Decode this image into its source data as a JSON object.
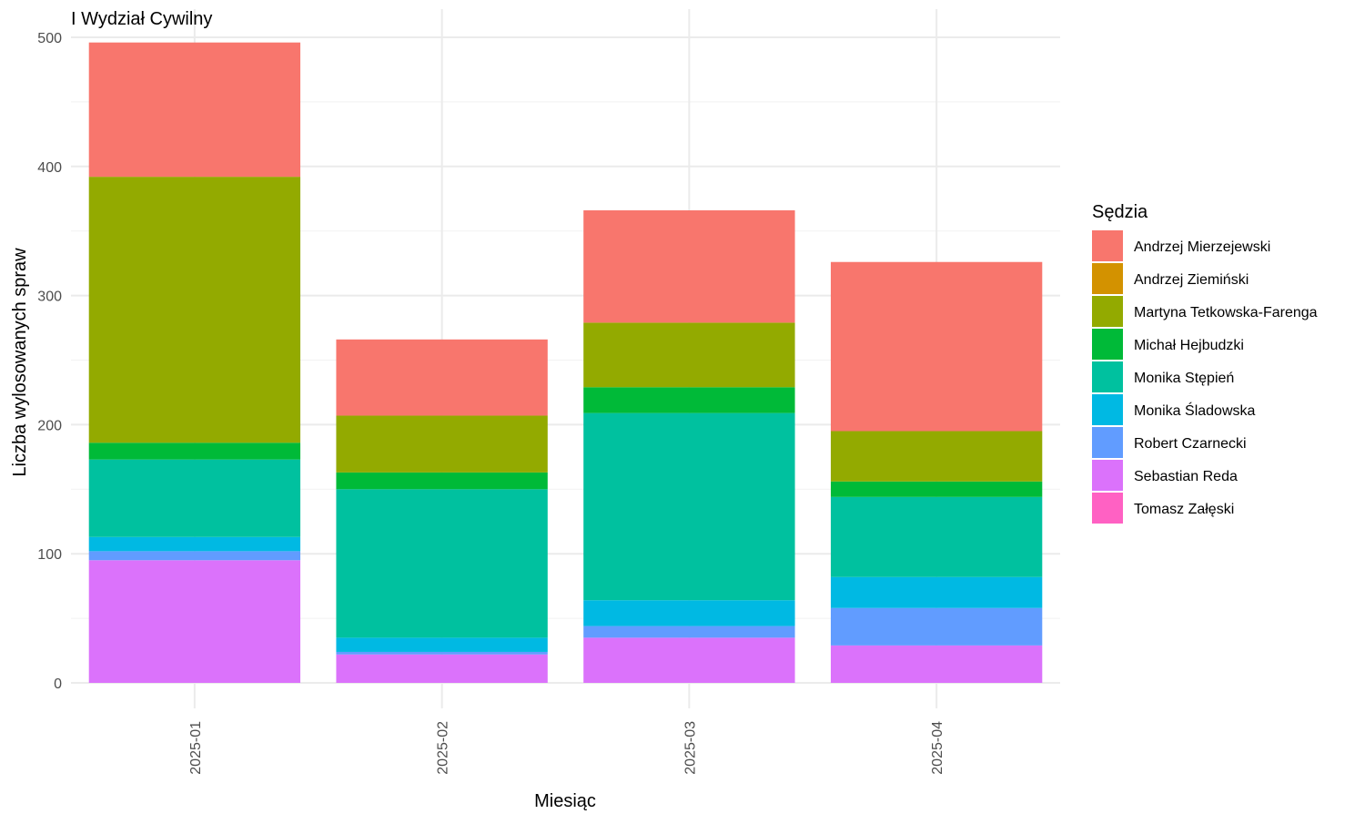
{
  "chart_data": {
    "type": "bar",
    "stacked": true,
    "title": "I Wydział Cywilny",
    "xlabel": "Miesiąc",
    "ylabel": "Liczba wylosowanych spraw",
    "ylim": [
      0,
      520
    ],
    "yticks": [
      0,
      100,
      200,
      300,
      400,
      500
    ],
    "grid": true,
    "legend_title": "Sędzia",
    "legend_position": "right",
    "categories": [
      "2025-01",
      "2025-02",
      "2025-03",
      "2025-04"
    ],
    "series": [
      {
        "name": "Andrzej Mierzejewski",
        "color": "#F8766D",
        "values": [
          104,
          59,
          87,
          131
        ]
      },
      {
        "name": "Andrzej Ziemiński",
        "color": "#D39200",
        "values": [
          0,
          0,
          0,
          0
        ]
      },
      {
        "name": "Martyna Tetkowska-Farenga",
        "color": "#93AA00",
        "values": [
          206,
          44,
          50,
          39
        ]
      },
      {
        "name": "Michał Hejbudzki",
        "color": "#00BA38",
        "values": [
          13,
          13,
          20,
          12
        ]
      },
      {
        "name": "Monika Stępień",
        "color": "#00C19F",
        "values": [
          60,
          115,
          145,
          62
        ]
      },
      {
        "name": "Monika Śladowska",
        "color": "#00B9E3",
        "values": [
          11,
          11,
          20,
          24
        ]
      },
      {
        "name": "Robert Czarnecki",
        "color": "#619CFF",
        "values": [
          7,
          2,
          9,
          29
        ]
      },
      {
        "name": "Sebastian Reda",
        "color": "#DB72FB",
        "values": [
          95,
          22,
          35,
          29
        ]
      },
      {
        "name": "Tomasz Załęski",
        "color": "#FF61C3",
        "values": [
          0,
          0,
          0,
          0
        ]
      }
    ]
  }
}
